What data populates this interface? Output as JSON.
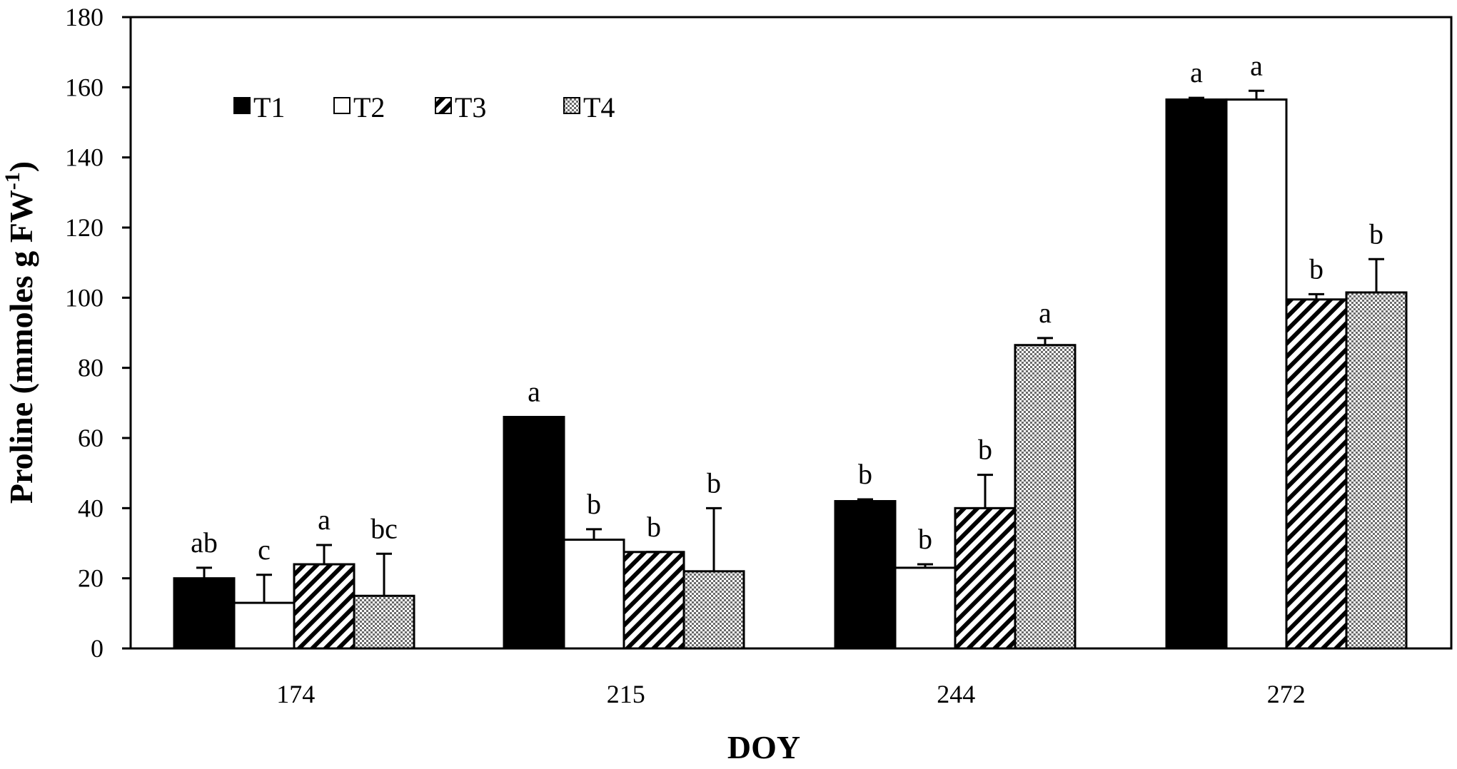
{
  "chart_data": {
    "type": "bar",
    "title": "",
    "xlabel": "DOY",
    "ylabel": {
      "main": "Proline (mmoles g FW",
      "superscript": "-1",
      "close": ")"
    },
    "ylim": [
      0,
      180
    ],
    "y_ticks": [
      0,
      20,
      40,
      60,
      80,
      100,
      120,
      140,
      160,
      180
    ],
    "grid": false,
    "legend_position": "top-left",
    "categories": [
      "174",
      "215",
      "244",
      "272"
    ],
    "series": [
      {
        "name": "T1",
        "fill": "solid",
        "values": [
          20,
          66,
          42,
          156.5
        ],
        "errors": [
          3,
          0,
          0.5,
          0.5
        ],
        "letters": [
          "ab",
          "a",
          "b",
          "a"
        ]
      },
      {
        "name": "T2",
        "fill": "white",
        "values": [
          13,
          31,
          23,
          156.5
        ],
        "errors": [
          8,
          3,
          1,
          2.5
        ],
        "letters": [
          "c",
          "b",
          "b",
          "a"
        ]
      },
      {
        "name": "T3",
        "fill": "diagonal-hatch",
        "values": [
          24,
          27.5,
          40,
          99.5
        ],
        "errors": [
          5.5,
          0,
          9.5,
          1.5
        ],
        "letters": [
          "a",
          "b",
          "b",
          "b"
        ]
      },
      {
        "name": "T4",
        "fill": "crosshatch",
        "values": [
          15,
          22,
          86.5,
          101.5
        ],
        "errors": [
          12,
          18,
          2,
          9.5
        ],
        "letters": [
          "bc",
          "b",
          "a",
          "b"
        ]
      }
    ],
    "colors": {
      "solid": "#000000",
      "white": "#ffffff",
      "stroke": "#000000"
    }
  }
}
